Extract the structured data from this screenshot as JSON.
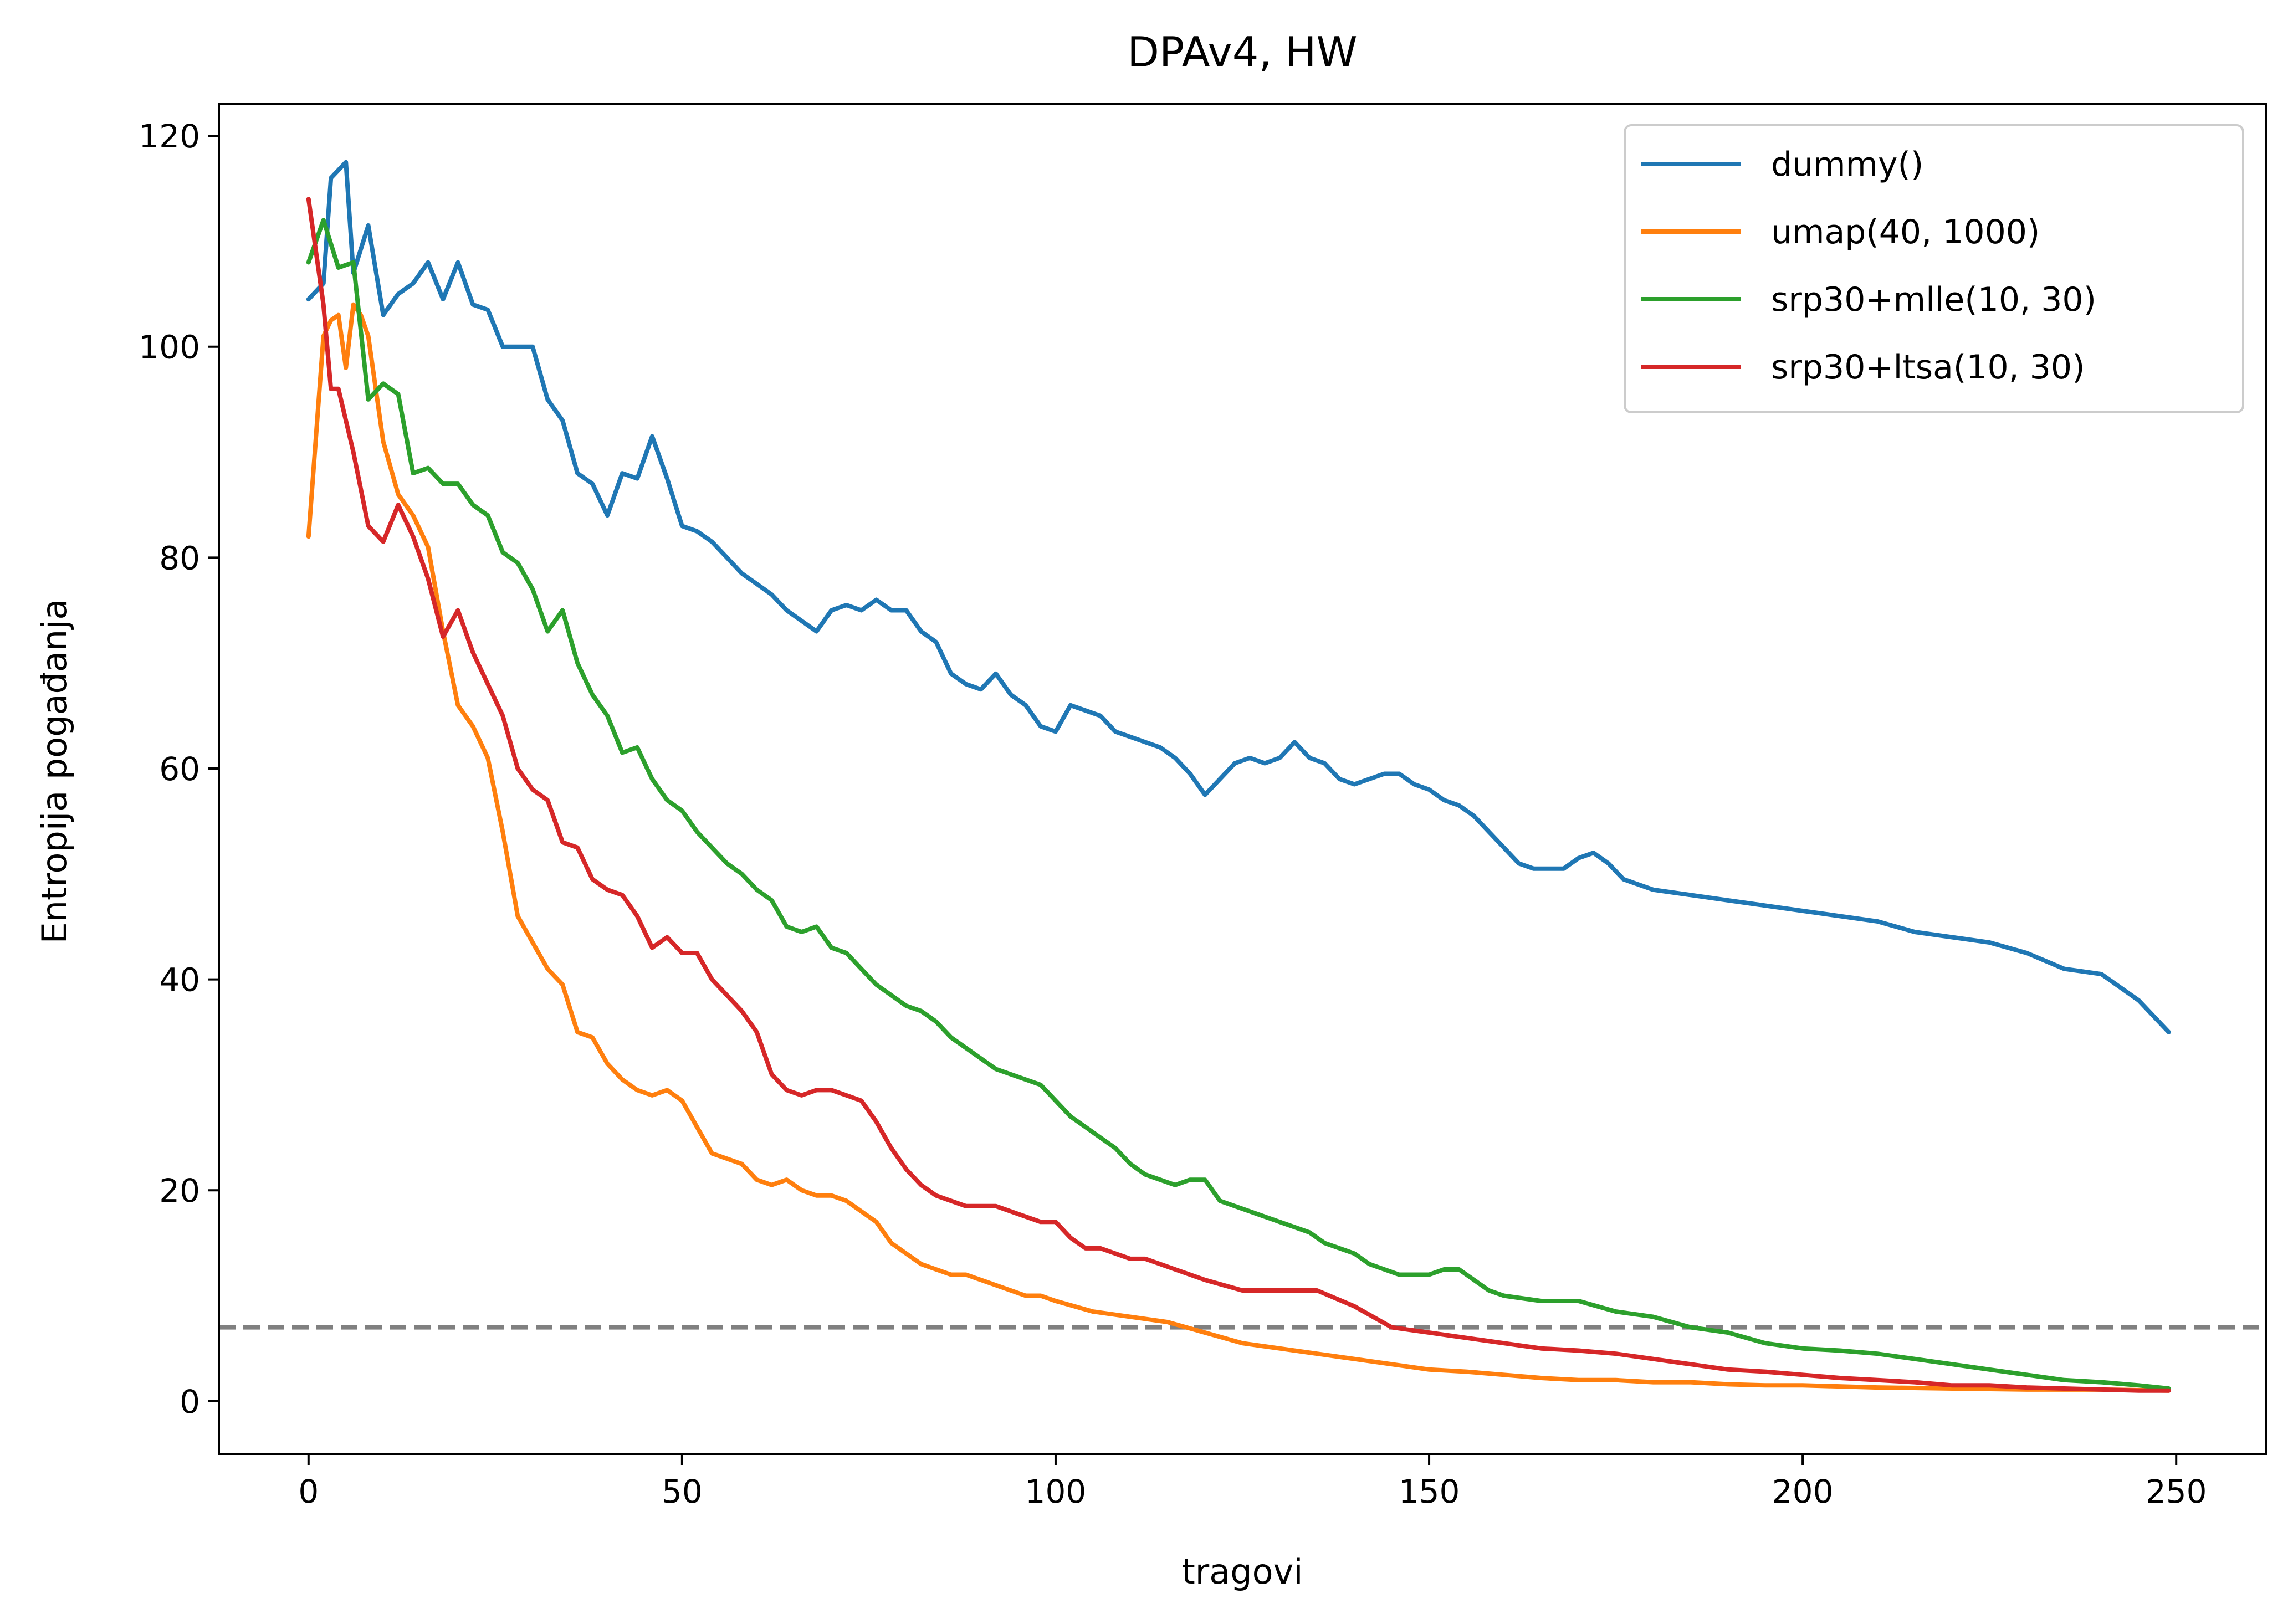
{
  "chart_data": {
    "type": "line",
    "title": "DPAv4, HW",
    "xlabel": "tragovi",
    "ylabel": "Entropija pogađanja",
    "xlim": [
      -12,
      262
    ],
    "ylim": [
      -5,
      123
    ],
    "xticks": [
      0,
      50,
      100,
      150,
      200,
      250
    ],
    "yticks": [
      0,
      20,
      40,
      60,
      80,
      100,
      120
    ],
    "grid": false,
    "legend_position": "top-right",
    "reference_line": {
      "y": 7,
      "color": "#808080",
      "style": "dashed"
    },
    "series": [
      {
        "name": "dummy()",
        "color": "#1f77b4",
        "x": [
          0,
          2,
          3,
          5,
          6,
          8,
          10,
          12,
          14,
          16,
          18,
          20,
          22,
          24,
          26,
          28,
          30,
          32,
          34,
          36,
          38,
          40,
          42,
          44,
          46,
          48,
          50,
          52,
          54,
          56,
          58,
          60,
          62,
          64,
          66,
          68,
          70,
          72,
          74,
          76,
          78,
          80,
          82,
          84,
          86,
          88,
          90,
          92,
          94,
          96,
          98,
          100,
          102,
          104,
          106,
          108,
          110,
          112,
          114,
          116,
          118,
          120,
          122,
          124,
          126,
          128,
          130,
          132,
          134,
          136,
          138,
          140,
          142,
          144,
          146,
          148,
          150,
          152,
          154,
          156,
          158,
          160,
          162,
          164,
          166,
          168,
          170,
          172,
          174,
          176,
          178,
          180,
          185,
          190,
          195,
          200,
          205,
          210,
          215,
          220,
          225,
          230,
          235,
          240,
          245,
          249
        ],
        "values": [
          104.5,
          106,
          116,
          117.5,
          107,
          111.5,
          103,
          105,
          106,
          108,
          104.5,
          108,
          104,
          103.5,
          100,
          100,
          100,
          95,
          93,
          88,
          87,
          84,
          88,
          87.5,
          91.5,
          87.5,
          83,
          82.5,
          81.5,
          80,
          78.5,
          77.5,
          76.5,
          75,
          74,
          73,
          75,
          75.5,
          75,
          76,
          75,
          75,
          73,
          72,
          69,
          68,
          67.5,
          69,
          67,
          66,
          64,
          63.5,
          66,
          65.5,
          65,
          63.5,
          63,
          62.5,
          62,
          61,
          59.5,
          57.5,
          59,
          60.5,
          61,
          60.5,
          61,
          62.5,
          61,
          60.5,
          59,
          58.5,
          59,
          59.5,
          59.5,
          58.5,
          58,
          57,
          56.5,
          55.5,
          54,
          52.5,
          51,
          50.5,
          50.5,
          50.5,
          51.5,
          52,
          51,
          49.5,
          49,
          48.5,
          48,
          47.5,
          47,
          46.5,
          46,
          45.5,
          44.5,
          44,
          43.5,
          42.5,
          41,
          40.5,
          38,
          35
        ]
      },
      {
        "name": "umap(40, 1000)",
        "color": "#ff7f0e",
        "x": [
          0,
          2,
          3,
          4,
          5,
          6,
          7,
          8,
          10,
          12,
          14,
          16,
          18,
          20,
          22,
          24,
          26,
          28,
          30,
          32,
          34,
          36,
          38,
          40,
          42,
          44,
          46,
          48,
          50,
          52,
          54,
          56,
          58,
          60,
          62,
          64,
          66,
          68,
          70,
          72,
          74,
          76,
          78,
          80,
          82,
          84,
          86,
          88,
          90,
          92,
          94,
          96,
          98,
          100,
          105,
          110,
          115,
          120,
          125,
          130,
          135,
          140,
          145,
          150,
          155,
          160,
          165,
          170,
          175,
          180,
          185,
          190,
          195,
          200,
          210,
          220,
          230,
          240,
          249
        ],
        "values": [
          82,
          101,
          102.5,
          103,
          98,
          104,
          103,
          101,
          91,
          86,
          84,
          81,
          73,
          66,
          64,
          61,
          54,
          46,
          43.5,
          41,
          39.5,
          35,
          34.5,
          32,
          30.5,
          29.5,
          29,
          29.5,
          28.5,
          26,
          23.5,
          23,
          22.5,
          21,
          20.5,
          21,
          20,
          19.5,
          19.5,
          19,
          18,
          17,
          15,
          14,
          13,
          12.5,
          12,
          12,
          11.5,
          11,
          10.5,
          10,
          10,
          9.5,
          8.5,
          8,
          7.5,
          6.5,
          5.5,
          5,
          4.5,
          4,
          3.5,
          3,
          2.8,
          2.5,
          2.2,
          2,
          2,
          1.8,
          1.8,
          1.6,
          1.5,
          1.5,
          1.3,
          1.2,
          1.1,
          1.1,
          1
        ]
      },
      {
        "name": "srp30+mlle(10, 30)",
        "color": "#2ca02c",
        "x": [
          0,
          2,
          4,
          6,
          8,
          10,
          12,
          14,
          16,
          18,
          20,
          22,
          24,
          26,
          28,
          30,
          32,
          34,
          36,
          38,
          40,
          42,
          44,
          46,
          48,
          50,
          52,
          54,
          56,
          58,
          60,
          62,
          64,
          66,
          68,
          70,
          72,
          74,
          76,
          78,
          80,
          82,
          84,
          86,
          88,
          90,
          92,
          94,
          96,
          98,
          100,
          102,
          104,
          106,
          108,
          110,
          112,
          114,
          116,
          118,
          120,
          122,
          124,
          126,
          128,
          130,
          132,
          134,
          136,
          138,
          140,
          142,
          144,
          146,
          148,
          150,
          152,
          154,
          156,
          158,
          160,
          165,
          170,
          175,
          180,
          185,
          190,
          195,
          200,
          205,
          210,
          215,
          220,
          225,
          230,
          235,
          240,
          245,
          249
        ],
        "values": [
          108,
          112,
          107.5,
          108,
          95,
          96.5,
          95.5,
          88,
          88.5,
          87,
          87,
          85,
          84,
          80.5,
          79.5,
          77,
          73,
          75,
          70,
          67,
          65,
          61.5,
          62,
          59,
          57,
          56,
          54,
          52.5,
          51,
          50,
          48.5,
          47.5,
          45,
          44.5,
          45,
          43,
          42.5,
          41,
          39.5,
          38.5,
          37.5,
          37,
          36,
          34.5,
          33.5,
          32.5,
          31.5,
          31,
          30.5,
          30,
          28.5,
          27,
          26,
          25,
          24,
          22.5,
          21.5,
          21,
          20.5,
          21,
          21,
          19,
          18.5,
          18,
          17.5,
          17,
          16.5,
          16,
          15,
          14.5,
          14,
          13,
          12.5,
          12,
          12,
          12,
          12.5,
          12.5,
          11.5,
          10.5,
          10,
          9.5,
          9.5,
          8.5,
          8,
          7,
          6.5,
          5.5,
          5,
          4.8,
          4.5,
          4,
          3.5,
          3,
          2.5,
          2,
          1.8,
          1.5,
          1.2
        ]
      },
      {
        "name": "srp30+ltsa(10, 30)",
        "color": "#d62728",
        "x": [
          0,
          2,
          3,
          4,
          6,
          8,
          10,
          12,
          14,
          16,
          18,
          20,
          22,
          24,
          26,
          28,
          30,
          32,
          34,
          36,
          38,
          40,
          42,
          44,
          46,
          48,
          50,
          52,
          54,
          56,
          58,
          60,
          62,
          64,
          66,
          68,
          70,
          72,
          74,
          76,
          78,
          80,
          82,
          84,
          86,
          88,
          90,
          92,
          94,
          96,
          98,
          100,
          102,
          104,
          106,
          108,
          110,
          112,
          114,
          116,
          118,
          120,
          125,
          130,
          135,
          140,
          145,
          150,
          155,
          160,
          165,
          170,
          175,
          180,
          185,
          190,
          195,
          200,
          205,
          210,
          215,
          220,
          225,
          230,
          235,
          240,
          245,
          249
        ],
        "values": [
          114,
          104,
          96,
          96,
          90,
          83,
          81.5,
          85,
          82,
          78,
          72.5,
          75,
          71,
          68,
          65,
          60,
          58,
          57,
          53,
          52.5,
          49.5,
          48.5,
          48,
          46,
          43,
          44,
          42.5,
          42.5,
          40,
          38.5,
          37,
          35,
          31,
          29.5,
          29,
          29.5,
          29.5,
          29,
          28.5,
          26.5,
          24,
          22,
          20.5,
          19.5,
          19,
          18.5,
          18.5,
          18.5,
          18,
          17.5,
          17,
          17,
          15.5,
          14.5,
          14.5,
          14,
          13.5,
          13.5,
          13,
          12.5,
          12,
          11.5,
          10.5,
          10.5,
          10.5,
          9,
          7,
          6.5,
          6,
          5.5,
          5,
          4.8,
          4.5,
          4,
          3.5,
          3,
          2.8,
          2.5,
          2.2,
          2,
          1.8,
          1.5,
          1.5,
          1.3,
          1.2,
          1.1,
          1,
          1
        ]
      }
    ]
  }
}
